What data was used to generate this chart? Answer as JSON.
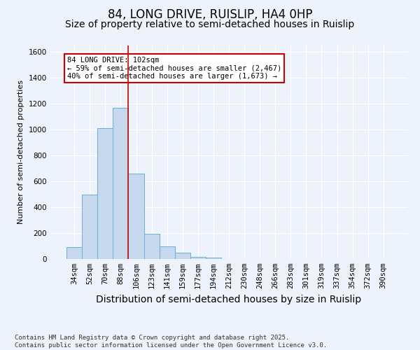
{
  "title": "84, LONG DRIVE, RUISLIP, HA4 0HP",
  "subtitle": "Size of property relative to semi-detached houses in Ruislip",
  "xlabel": "Distribution of semi-detached houses by size in Ruislip",
  "ylabel": "Number of semi-detached properties",
  "categories": [
    "34sqm",
    "52sqm",
    "70sqm",
    "88sqm",
    "106sqm",
    "123sqm",
    "141sqm",
    "159sqm",
    "177sqm",
    "194sqm",
    "212sqm",
    "230sqm",
    "248sqm",
    "266sqm",
    "283sqm",
    "301sqm",
    "319sqm",
    "337sqm",
    "354sqm",
    "372sqm",
    "390sqm"
  ],
  "values": [
    90,
    500,
    1010,
    1170,
    660,
    195,
    100,
    50,
    15,
    10,
    0,
    0,
    0,
    0,
    0,
    0,
    0,
    0,
    0,
    0,
    0
  ],
  "bar_color": "#c5d8ed",
  "bar_edge_color": "#6aaed6",
  "background_color": "#edf2fb",
  "red_line_x": 3.5,
  "annotation_text": "84 LONG DRIVE: 102sqm\n← 59% of semi-detached houses are smaller (2,467)\n40% of semi-detached houses are larger (1,673) →",
  "annotation_box_color": "#ffffff",
  "annotation_border_color": "#cc0000",
  "ylim": [
    0,
    1650
  ],
  "yticks": [
    0,
    200,
    400,
    600,
    800,
    1000,
    1200,
    1400,
    1600
  ],
  "footer_text": "Contains HM Land Registry data © Crown copyright and database right 2025.\nContains public sector information licensed under the Open Government Licence v3.0.",
  "title_fontsize": 12,
  "subtitle_fontsize": 10,
  "xlabel_fontsize": 10,
  "ylabel_fontsize": 8,
  "tick_fontsize": 7.5,
  "footer_fontsize": 6.5
}
